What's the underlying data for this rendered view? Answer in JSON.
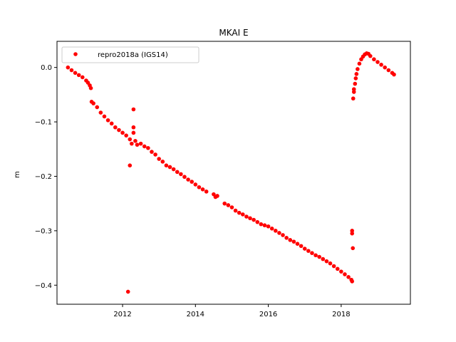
{
  "chart_data": {
    "type": "scatter",
    "title": "MKAI E",
    "xlabel": "",
    "ylabel": "m",
    "xlim": [
      2010.2,
      2019.9
    ],
    "ylim": [
      -0.435,
      0.048
    ],
    "x_ticks": [
      2012,
      2014,
      2016,
      2018
    ],
    "y_ticks": [
      0.0,
      -0.1,
      -0.2,
      -0.3,
      -0.4
    ],
    "x_tick_labels": [
      "2012",
      "2014",
      "2016",
      "2018"
    ],
    "y_tick_labels": [
      "0.0",
      "−0.1",
      "−0.2",
      "−0.3",
      "−0.4"
    ],
    "grid": false,
    "legend_position": "upper-left",
    "colors": {
      "series": "#ff0000"
    },
    "series": [
      {
        "name": "repro2018a (IGS14)",
        "marker": "circle",
        "points": [
          [
            2010.5,
            0.0
          ],
          [
            2010.6,
            -0.005
          ],
          [
            2010.7,
            -0.01
          ],
          [
            2010.8,
            -0.014
          ],
          [
            2010.9,
            -0.018
          ],
          [
            2011.0,
            -0.024
          ],
          [
            2011.05,
            -0.028
          ],
          [
            2011.1,
            -0.033
          ],
          [
            2011.13,
            -0.038
          ],
          [
            2011.15,
            -0.063
          ],
          [
            2011.2,
            -0.066
          ],
          [
            2011.3,
            -0.073
          ],
          [
            2011.4,
            -0.083
          ],
          [
            2011.5,
            -0.09
          ],
          [
            2011.6,
            -0.097
          ],
          [
            2011.7,
            -0.103
          ],
          [
            2011.8,
            -0.11
          ],
          [
            2011.9,
            -0.115
          ],
          [
            2012.0,
            -0.12
          ],
          [
            2012.1,
            -0.125
          ],
          [
            2012.15,
            -0.412
          ],
          [
            2012.2,
            -0.132
          ],
          [
            2012.2,
            -0.18
          ],
          [
            2012.25,
            -0.14
          ],
          [
            2012.3,
            -0.077
          ],
          [
            2012.3,
            -0.11
          ],
          [
            2012.3,
            -0.12
          ],
          [
            2012.35,
            -0.135
          ],
          [
            2012.4,
            -0.142
          ],
          [
            2012.5,
            -0.14
          ],
          [
            2012.6,
            -0.145
          ],
          [
            2012.7,
            -0.148
          ],
          [
            2012.8,
            -0.155
          ],
          [
            2012.9,
            -0.16
          ],
          [
            2013.0,
            -0.168
          ],
          [
            2013.1,
            -0.173
          ],
          [
            2013.2,
            -0.18
          ],
          [
            2013.3,
            -0.183
          ],
          [
            2013.4,
            -0.187
          ],
          [
            2013.5,
            -0.192
          ],
          [
            2013.6,
            -0.196
          ],
          [
            2013.7,
            -0.201
          ],
          [
            2013.8,
            -0.206
          ],
          [
            2013.9,
            -0.21
          ],
          [
            2014.0,
            -0.215
          ],
          [
            2014.1,
            -0.22
          ],
          [
            2014.2,
            -0.224
          ],
          [
            2014.3,
            -0.228
          ],
          [
            2014.5,
            -0.233
          ],
          [
            2014.55,
            -0.238
          ],
          [
            2014.6,
            -0.236
          ],
          [
            2014.8,
            -0.25
          ],
          [
            2014.9,
            -0.253
          ],
          [
            2015.0,
            -0.257
          ],
          [
            2015.1,
            -0.263
          ],
          [
            2015.2,
            -0.267
          ],
          [
            2015.3,
            -0.27
          ],
          [
            2015.4,
            -0.274
          ],
          [
            2015.5,
            -0.277
          ],
          [
            2015.6,
            -0.28
          ],
          [
            2015.7,
            -0.284
          ],
          [
            2015.8,
            -0.288
          ],
          [
            2015.9,
            -0.29
          ],
          [
            2016.0,
            -0.292
          ],
          [
            2016.1,
            -0.296
          ],
          [
            2016.2,
            -0.3
          ],
          [
            2016.3,
            -0.304
          ],
          [
            2016.4,
            -0.308
          ],
          [
            2016.5,
            -0.313
          ],
          [
            2016.6,
            -0.317
          ],
          [
            2016.7,
            -0.32
          ],
          [
            2016.8,
            -0.324
          ],
          [
            2016.9,
            -0.328
          ],
          [
            2017.0,
            -0.333
          ],
          [
            2017.1,
            -0.337
          ],
          [
            2017.2,
            -0.341
          ],
          [
            2017.3,
            -0.345
          ],
          [
            2017.4,
            -0.348
          ],
          [
            2017.5,
            -0.352
          ],
          [
            2017.6,
            -0.356
          ],
          [
            2017.7,
            -0.36
          ],
          [
            2017.8,
            -0.365
          ],
          [
            2017.9,
            -0.37
          ],
          [
            2018.0,
            -0.375
          ],
          [
            2018.1,
            -0.38
          ],
          [
            2018.2,
            -0.385
          ],
          [
            2018.28,
            -0.39
          ],
          [
            2018.3,
            -0.393
          ],
          [
            2018.3,
            -0.3
          ],
          [
            2018.3,
            -0.305
          ],
          [
            2018.32,
            -0.332
          ],
          [
            2018.33,
            -0.057
          ],
          [
            2018.35,
            -0.045
          ],
          [
            2018.35,
            -0.04
          ],
          [
            2018.38,
            -0.03
          ],
          [
            2018.4,
            -0.02
          ],
          [
            2018.42,
            -0.012
          ],
          [
            2018.45,
            -0.003
          ],
          [
            2018.5,
            0.007
          ],
          [
            2018.55,
            0.015
          ],
          [
            2018.6,
            0.02
          ],
          [
            2018.65,
            0.024
          ],
          [
            2018.7,
            0.026
          ],
          [
            2018.75,
            0.025
          ],
          [
            2018.8,
            0.021
          ],
          [
            2018.9,
            0.015
          ],
          [
            2019.0,
            0.01
          ],
          [
            2019.1,
            0.005
          ],
          [
            2019.2,
            0.0
          ],
          [
            2019.3,
            -0.005
          ],
          [
            2019.4,
            -0.01
          ],
          [
            2019.45,
            -0.013
          ]
        ]
      }
    ]
  }
}
